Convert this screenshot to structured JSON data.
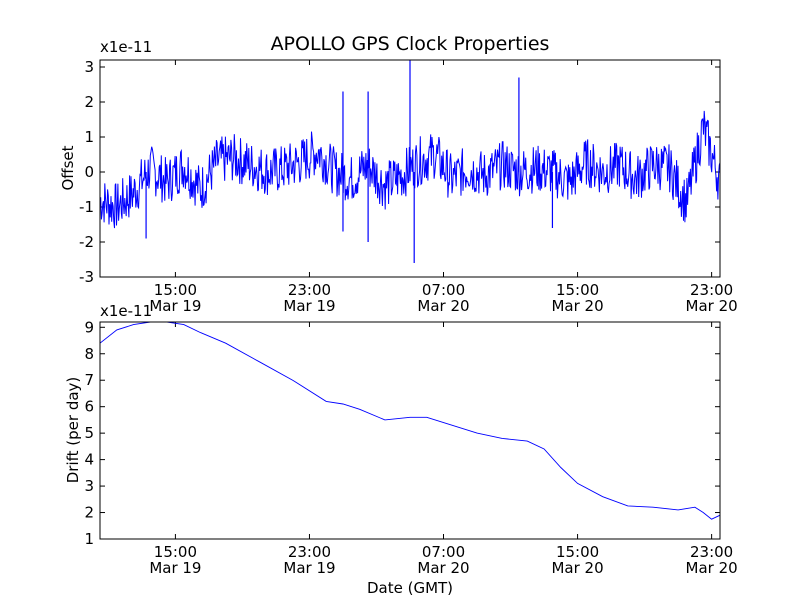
{
  "chart_data": [
    {
      "type": "line",
      "title": "APOLLO GPS Clock Properties",
      "xlabel": "",
      "ylabel": "Offset",
      "y_multiplier": "x1e-11",
      "x_ticks": [
        {
          "time": "15:00",
          "date": "Mar 19"
        },
        {
          "time": "23:00",
          "date": "Mar 19"
        },
        {
          "time": "07:00",
          "date": "Mar 20"
        },
        {
          "time": "15:00",
          "date": "Mar 20"
        },
        {
          "time": "23:00",
          "date": "Mar 20"
        }
      ],
      "xlim": [
        "Mar 19 10:30",
        "Mar 20 23:30"
      ],
      "ylim": [
        -3,
        3.2
      ],
      "y_ticks": [
        "-3",
        "-2",
        "-1",
        "0",
        "1",
        "2",
        "3"
      ],
      "grid": false,
      "color": "#0000ff",
      "series": [
        {
          "note": "noisy offset signal around zero",
          "x": [
            "Mar 19 10:30",
            "Mar 19 11:30",
            "Mar 19 12:30",
            "Mar 19 13:30",
            "Mar 19 14:30",
            "Mar 19 15:30",
            "Mar 19 16:30",
            "Mar 19 17:30",
            "Mar 19 18:30",
            "Mar 19 19:30",
            "Mar 19 20:30",
            "Mar 19 21:30",
            "Mar 19 22:30",
            "Mar 19 23:30",
            "Mar 20 00:30",
            "Mar 20 01:30",
            "Mar 20 02:30",
            "Mar 20 03:30",
            "Mar 20 04:30",
            "Mar 20 05:30",
            "Mar 20 06:30",
            "Mar 20 07:30",
            "Mar 20 08:30",
            "Mar 20 09:30",
            "Mar 20 10:30",
            "Mar 20 11:30",
            "Mar 20 12:30",
            "Mar 20 13:30",
            "Mar 20 14:30",
            "Mar 20 15:30",
            "Mar 20 16:30",
            "Mar 20 17:30",
            "Mar 20 18:30",
            "Mar 20 19:30",
            "Mar 20 20:30",
            "Mar 20 21:30",
            "Mar 20 22:30",
            "Mar 20 23:30"
          ],
          "values": [
            -0.8,
            -1.0,
            -0.6,
            0.1,
            -0.3,
            0.2,
            -0.5,
            0.3,
            0.4,
            0.2,
            0.0,
            0.1,
            0.3,
            0.6,
            0.0,
            -0.2,
            0.2,
            -0.4,
            -0.1,
            0.3,
            0.5,
            -0.2,
            0.1,
            -0.1,
            0.2,
            0.0,
            0.1,
            0.0,
            -0.3,
            0.3,
            0.0,
            0.2,
            -0.2,
            0.2,
            0.1,
            -0.9,
            1.3,
            -0.3
          ]
        }
      ],
      "spikes": [
        {
          "x": "Mar 20 01:00",
          "value": 2.3
        },
        {
          "x": "Mar 20 01:00",
          "value": -1.7
        },
        {
          "x": "Mar 20 02:30",
          "value": 2.3
        },
        {
          "x": "Mar 20 02:30",
          "value": -2.0
        },
        {
          "x": "Mar 20 05:00",
          "value": 3.2
        },
        {
          "x": "Mar 20 05:15",
          "value": -2.6
        },
        {
          "x": "Mar 20 11:30",
          "value": 2.7
        },
        {
          "x": "Mar 20 13:30",
          "value": -1.6
        },
        {
          "x": "Mar 19 13:15",
          "value": -1.9
        }
      ]
    },
    {
      "type": "line",
      "title": "",
      "xlabel": "Date (GMT)",
      "ylabel": "Drift (per day)",
      "y_multiplier": "x1e-11",
      "x_ticks": [
        {
          "time": "15:00",
          "date": "Mar 19"
        },
        {
          "time": "23:00",
          "date": "Mar 19"
        },
        {
          "time": "07:00",
          "date": "Mar 20"
        },
        {
          "time": "15:00",
          "date": "Mar 20"
        },
        {
          "time": "23:00",
          "date": "Mar 20"
        }
      ],
      "xlim": [
        "Mar 19 10:30",
        "Mar 20 23:30"
      ],
      "ylim": [
        1,
        9.2
      ],
      "y_ticks": [
        "1",
        "2",
        "3",
        "4",
        "5",
        "6",
        "7",
        "8",
        "9"
      ],
      "grid": false,
      "color": "#0000ff",
      "series": [
        {
          "x": [
            "Mar 19 10:30",
            "Mar 19 11:30",
            "Mar 19 12:30",
            "Mar 19 13:30",
            "Mar 19 14:30",
            "Mar 19 15:30",
            "Mar 19 16:30",
            "Mar 19 18:00",
            "Mar 19 20:00",
            "Mar 19 22:00",
            "Mar 20 00:00",
            "Mar 20 01:00",
            "Mar 20 02:00",
            "Mar 20 03:30",
            "Mar 20 05:00",
            "Mar 20 06:00",
            "Mar 20 07:30",
            "Mar 20 09:00",
            "Mar 20 10:30",
            "Mar 20 12:00",
            "Mar 20 13:00",
            "Mar 20 14:00",
            "Mar 20 15:00",
            "Mar 20 16:30",
            "Mar 20 18:00",
            "Mar 20 19:30",
            "Mar 20 21:00",
            "Mar 20 22:00",
            "Mar 20 22:30",
            "Mar 20 23:00",
            "Mar 20 23:30"
          ],
          "values": [
            8.4,
            8.9,
            9.1,
            9.2,
            9.2,
            9.1,
            8.8,
            8.4,
            7.7,
            7.0,
            6.2,
            6.1,
            5.9,
            5.5,
            5.6,
            5.6,
            5.3,
            5.0,
            4.8,
            4.7,
            4.4,
            3.7,
            3.1,
            2.6,
            2.25,
            2.2,
            2.1,
            2.2,
            2.0,
            1.75,
            1.9
          ]
        }
      ]
    }
  ]
}
